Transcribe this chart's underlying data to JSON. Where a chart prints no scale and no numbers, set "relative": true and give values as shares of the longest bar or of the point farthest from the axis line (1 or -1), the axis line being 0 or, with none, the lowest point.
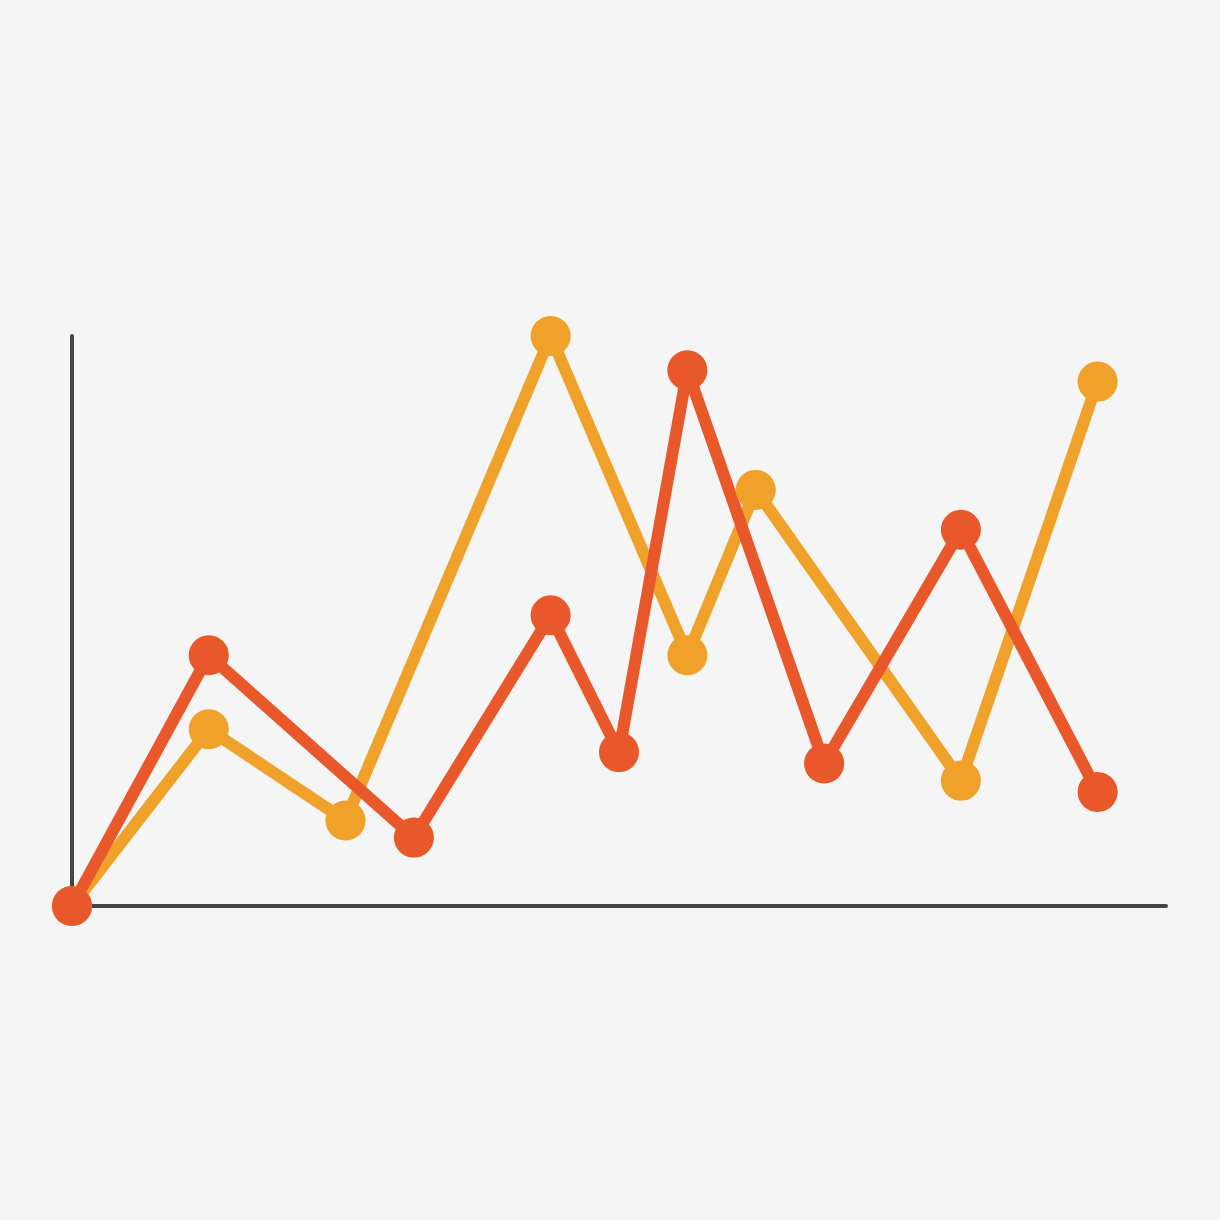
{
  "chart_data": {
    "type": "line",
    "relative": true,
    "grid": false,
    "marker": "circle",
    "line_style": "solid",
    "categories": [
      null,
      null,
      null,
      null,
      null,
      null,
      null,
      null,
      null,
      null,
      null,
      null,
      null,
      null,
      null,
      null,
      null
    ],
    "series": [
      {
        "color": "#f0a12a",
        "values": [
          0,
          null,
          0.31,
          null,
          0.15,
          null,
          null,
          1,
          null,
          0.44,
          0.73,
          null,
          null,
          0.22,
          null,
          0.92,
          null
        ]
      },
      {
        "color": "#e8582a",
        "values": [
          0,
          null,
          0.44,
          null,
          null,
          0.12,
          null,
          0.51,
          0.27,
          0.94,
          null,
          0.25,
          null,
          0.66,
          null,
          0.2,
          null
        ]
      }
    ]
  }
}
